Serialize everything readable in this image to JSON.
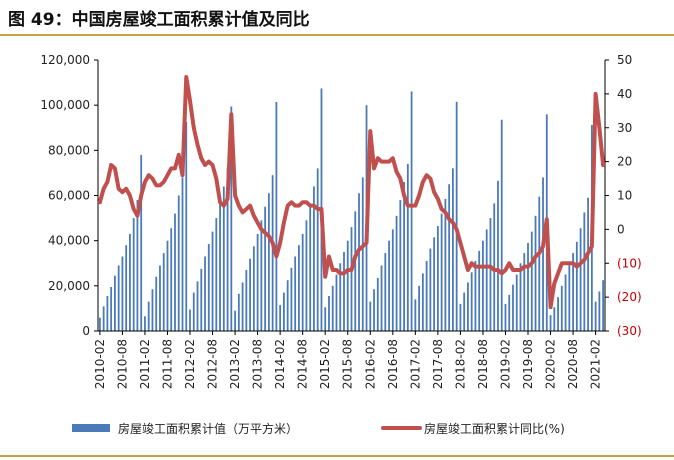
{
  "title": "图 49：中国房屋竣工面积累计值及同比",
  "chart_data": {
    "type": "bar+line",
    "x_tick_labels": [
      "2010-02",
      "2010-08",
      "2011-02",
      "2011-08",
      "2012-02",
      "2012-08",
      "2013-02",
      "2013-08",
      "2014-02",
      "2014-08",
      "2015-02",
      "2015-08",
      "2016-02",
      "2016-08",
      "2017-02",
      "2017-08",
      "2018-02",
      "2018-08",
      "2019-02",
      "2019-08",
      "2020-02",
      "2020-08",
      "2021-02"
    ],
    "y_left": {
      "ticks": [
        "0",
        "20,000",
        "40,000",
        "60,000",
        "80,000",
        "100,000",
        "120,000"
      ],
      "range": [
        0,
        120000
      ]
    },
    "y_right": {
      "ticks": [
        "(30)",
        "(20)",
        "(10)",
        "0",
        "10",
        "20",
        "30",
        "40",
        "50"
      ],
      "range": [
        -30,
        50
      ]
    },
    "start": "2010-02",
    "end": "2021-04",
    "series": [
      {
        "name": "房屋竣工面积累计值（万平方米）",
        "type": "bar",
        "axis": "left",
        "color": "#4a7ab8",
        "values": [
          5900,
          10900,
          15500,
          19500,
          24500,
          29000,
          33000,
          38000,
          43000,
          50000,
          58000,
          78000,
          6500,
          13000,
          18500,
          24000,
          29000,
          34500,
          40000,
          45500,
          52000,
          60000,
          68000,
          92600,
          9500,
          17000,
          22000,
          27500,
          33000,
          38500,
          44000,
          50000,
          57000,
          64000,
          72000,
          99400,
          9000,
          16500,
          21500,
          27000,
          32000,
          37500,
          43000,
          49000,
          55000,
          61000,
          69000,
          101400,
          11500,
          17000,
          22500,
          28000,
          33000,
          38000,
          43000,
          49000,
          56000,
          64000,
          72000,
          107400,
          10500,
          15500,
          20000,
          25000,
          30000,
          35000,
          40000,
          46000,
          53000,
          61000,
          68000,
          100000,
          13000,
          18500,
          23500,
          29000,
          34500,
          40000,
          45000,
          51000,
          58000,
          66000,
          74000,
          106100,
          14000,
          20000,
          25500,
          31000,
          36500,
          41500,
          46500,
          52000,
          58500,
          65000,
          72000,
          101500,
          12000,
          17000,
          21500,
          26000,
          31000,
          35500,
          40000,
          45000,
          50000,
          56500,
          66500,
          93550,
          12000,
          16000,
          20500,
          25000,
          30000,
          34500,
          39000,
          44000,
          51000,
          59500,
          68000,
          95940,
          7000,
          10500,
          15000,
          20000,
          25000,
          30000,
          34500,
          39500,
          45500,
          52500,
          59000,
          91220,
          13000,
          17500,
          22500
        ]
      },
      {
        "name": "房屋竣工面积累计同比(%)",
        "type": "line",
        "axis": "right",
        "color": "#c0504d",
        "values": [
          8,
          12,
          14,
          19,
          18,
          12,
          11,
          12,
          10,
          6,
          4,
          10,
          14,
          16,
          15,
          13,
          13,
          14,
          16,
          18,
          18,
          22,
          16,
          45,
          38,
          30,
          25,
          21,
          19,
          20,
          19,
          15,
          8,
          7,
          9,
          34,
          10,
          7,
          5,
          6,
          7,
          4,
          2,
          0,
          -1,
          -2,
          -4,
          -8,
          -4,
          2,
          7,
          8,
          7,
          7,
          8,
          8,
          7,
          7,
          6,
          6,
          -14,
          -8,
          -12,
          -12,
          -13,
          -13,
          -12,
          -12,
          -8,
          -6,
          -5,
          -4,
          29,
          18,
          21,
          20,
          20,
          20,
          21,
          17,
          15,
          10,
          7,
          7,
          7,
          10,
          14,
          16,
          15,
          11,
          9,
          6,
          5,
          3,
          2,
          0,
          -4,
          -8,
          -12,
          -10,
          -11,
          -11,
          -11,
          -11,
          -11,
          -12,
          -12,
          -13,
          -12,
          -10,
          -12,
          -12,
          -12,
          -11,
          -11,
          -10,
          -8,
          -7,
          -5,
          3,
          -23,
          -16,
          -13,
          -10,
          -10,
          -10,
          -10,
          -11,
          -10,
          -9,
          -7,
          -5,
          40,
          30,
          19
        ]
      }
    ],
    "legend": "bottom"
  }
}
